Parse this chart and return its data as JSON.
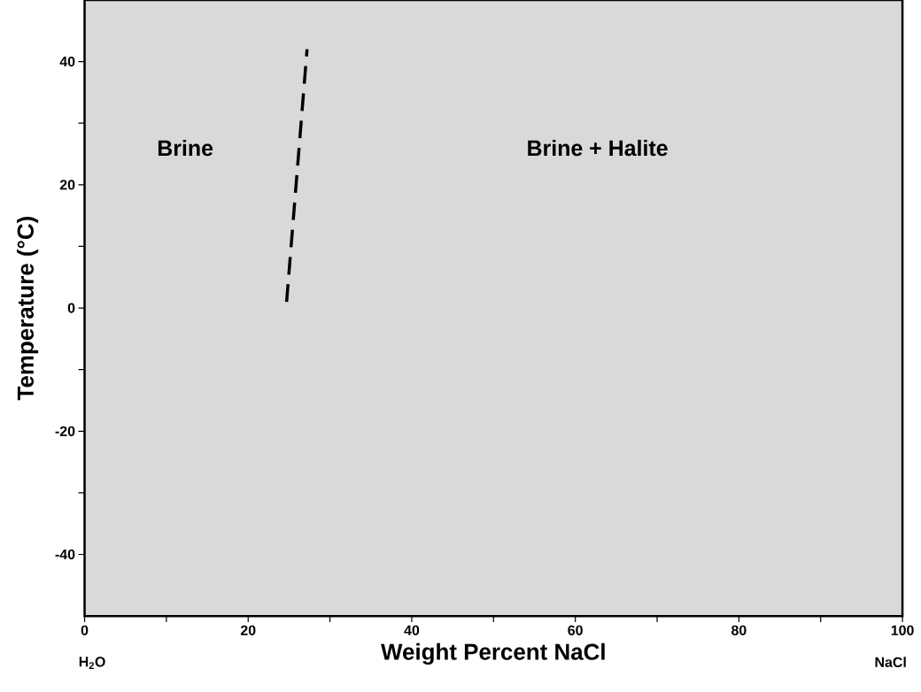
{
  "chart_data": {
    "type": "line",
    "xlabel": "Weight Percent NaCl",
    "ylabel": "Temperature (°C)",
    "xlim": [
      0,
      100
    ],
    "ylim": [
      -50,
      50
    ],
    "xticks": [
      0,
      {
        "value": 10,
        "label": null
      },
      20,
      {
        "value": 30,
        "label": null
      },
      40,
      {
        "value": 50,
        "label": null
      },
      60,
      {
        "value": 70,
        "label": null
      },
      80,
      {
        "value": 90,
        "label": null
      },
      100
    ],
    "yticks": [
      -40,
      {
        "value": -30,
        "label": null
      },
      -20,
      {
        "value": -10,
        "label": null
      },
      0,
      {
        "value": 10,
        "label": null
      },
      20,
      {
        "value": 30,
        "label": null
      },
      40
    ],
    "line_style": "dashed",
    "series": [
      {
        "color": "#000000",
        "x": [
          24.7,
          27.2
        ],
        "values": [
          1,
          42
        ]
      }
    ],
    "annotations": [
      "Brine",
      "Brine + Halite",
      "H$_{2}$O",
      "NaCl"
    ]
  }
}
